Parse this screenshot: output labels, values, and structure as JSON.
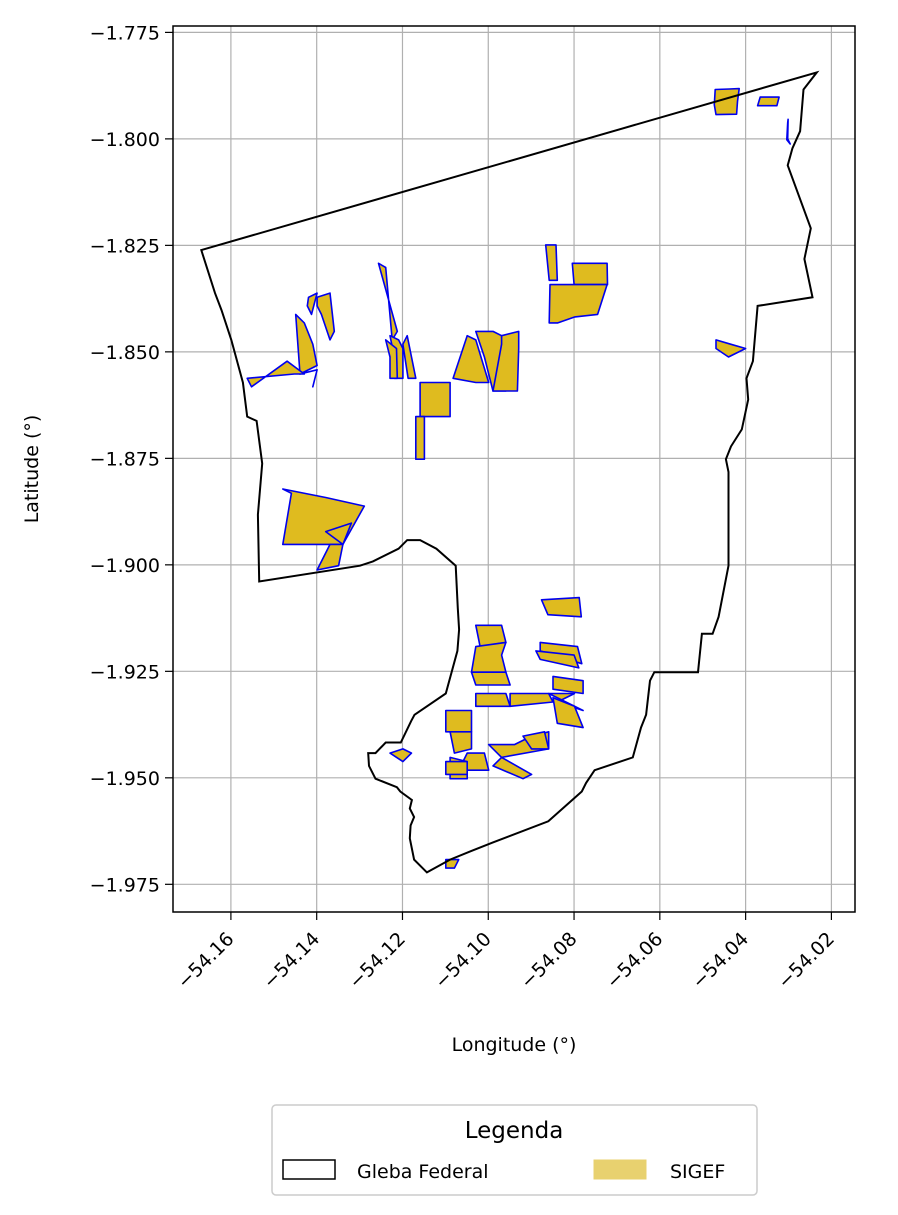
{
  "chart_data": {
    "type": "map",
    "xlabel": "Longitude (°)",
    "ylabel": "Latitude (°)",
    "xlim": [
      -54.1735,
      -54.0145
    ],
    "ylim": [
      -1.9815,
      -1.7735
    ],
    "x_ticks": [
      -54.16,
      -54.14,
      -54.12,
      -54.1,
      -54.08,
      -54.06,
      -54.04,
      -54.02
    ],
    "x_tick_labels": [
      "−54.16",
      "−54.14",
      "−54.12",
      "−54.10",
      "−54.08",
      "−54.06",
      "−54.04",
      "−54.02"
    ],
    "y_ticks": [
      -1.775,
      -1.8,
      -1.825,
      -1.85,
      -1.875,
      -1.9,
      -1.925,
      -1.95,
      -1.975
    ],
    "y_tick_labels": [
      "−1.775",
      "−1.800",
      "−1.825",
      "−1.850",
      "−1.875",
      "−1.900",
      "−1.925",
      "−1.950",
      "−1.975"
    ],
    "grid": true,
    "legend": {
      "title": "Legenda",
      "placement": "bottom-center",
      "entries": [
        {
          "name": "Gleba Federal",
          "facecolor": "#ffffff",
          "edgecolor": "#000000"
        },
        {
          "name": "SIGEF",
          "facecolor": "#e8d16f",
          "edgecolor": "#e8d16f"
        }
      ]
    },
    "colors": {
      "gleba_edge": "#000000",
      "sigef_fill": "#dfbb1f",
      "sigef_edge": "#0000ee",
      "grid": "#b0b0b0"
    },
    "gleba_federal": [
      [
        -54.1669,
        -1.8261
      ],
      [
        -54.0234,
        -1.7844
      ],
      [
        -54.0265,
        -1.7884
      ],
      [
        -54.0273,
        -1.7982
      ],
      [
        -54.0291,
        -1.8022
      ],
      [
        -54.0302,
        -1.8062
      ],
      [
        -54.0248,
        -1.821
      ],
      [
        -54.0263,
        -1.8282
      ],
      [
        -54.0244,
        -1.8372
      ],
      [
        -54.0372,
        -1.8392
      ],
      [
        -54.0383,
        -1.8522
      ],
      [
        -54.0398,
        -1.8562
      ],
      [
        -54.0394,
        -1.8612
      ],
      [
        -54.0409,
        -1.8682
      ],
      [
        -54.0434,
        -1.8722
      ],
      [
        -54.0446,
        -1.8752
      ],
      [
        -54.044,
        -1.8782
      ],
      [
        -54.044,
        -1.8892
      ],
      [
        -54.044,
        -1.9002
      ],
      [
        -54.0463,
        -1.9122
      ],
      [
        -54.0477,
        -1.9162
      ],
      [
        -54.0502,
        -1.9162
      ],
      [
        -54.0511,
        -1.9252
      ],
      [
        -54.0557,
        -1.9252
      ],
      [
        -54.0573,
        -1.9252
      ],
      [
        -54.0613,
        -1.9252
      ],
      [
        -54.0623,
        -1.9272
      ],
      [
        -54.0632,
        -1.9352
      ],
      [
        -54.0644,
        -1.9382
      ],
      [
        -54.0663,
        -1.9452
      ],
      [
        -54.0752,
        -1.9482
      ],
      [
        -54.0772,
        -1.9512
      ],
      [
        -54.0782,
        -1.9532
      ],
      [
        -54.086,
        -1.9602
      ],
      [
        -54.099,
        -1.9652
      ],
      [
        -54.104,
        -1.9672
      ],
      [
        -54.1089,
        -1.9692
      ],
      [
        -54.1143,
        -1.9722
      ],
      [
        -54.1173,
        -1.9692
      ],
      [
        -54.1183,
        -1.9642
      ],
      [
        -54.1181,
        -1.9612
      ],
      [
        -54.1173,
        -1.9592
      ],
      [
        -54.1183,
        -1.9572
      ],
      [
        -54.1178,
        -1.9552
      ],
      [
        -54.1205,
        -1.9532
      ],
      [
        -54.1213,
        -1.9522
      ],
      [
        -54.1263,
        -1.9502
      ],
      [
        -54.1278,
        -1.9472
      ],
      [
        -54.128,
        -1.9442
      ],
      [
        -54.1263,
        -1.9442
      ],
      [
        -54.1239,
        -1.9417
      ],
      [
        -54.1204,
        -1.9417
      ],
      [
        -54.118,
        -1.9367
      ],
      [
        -54.1172,
        -1.9352
      ],
      [
        -54.1099,
        -1.9302
      ],
      [
        -54.1072,
        -1.9202
      ],
      [
        -54.1068,
        -1.9152
      ],
      [
        -54.1071,
        -1.9102
      ],
      [
        -54.1076,
        -1.9002
      ],
      [
        -54.1121,
        -1.8962
      ],
      [
        -54.1159,
        -1.8942
      ],
      [
        -54.1189,
        -1.8942
      ],
      [
        -54.1209,
        -1.8962
      ],
      [
        -54.1269,
        -1.8992
      ],
      [
        -54.1299,
        -1.9002
      ],
      [
        -54.1534,
        -1.9039
      ],
      [
        -54.1537,
        -1.8882
      ],
      [
        -54.1527,
        -1.8762
      ],
      [
        -54.154,
        -1.8662
      ],
      [
        -54.1562,
        -1.8652
      ],
      [
        -54.1572,
        -1.8572
      ],
      [
        -54.1599,
        -1.8472
      ],
      [
        -54.1622,
        -1.8402
      ],
      [
        -54.1637,
        -1.8362
      ],
      [
        -54.1669,
        -1.8261
      ]
    ],
    "sigef_parcels": [
      [
        [
          -54.0471,
          -1.7884
        ],
        [
          -54.0438,
          -1.7883
        ],
        [
          -54.0415,
          -1.7882
        ],
        [
          -54.0419,
          -1.7912
        ],
        [
          -54.0421,
          -1.7942
        ],
        [
          -54.0469,
          -1.7943
        ],
        [
          -54.0473,
          -1.792
        ]
      ],
      [
        [
          -54.0366,
          -1.7902
        ],
        [
          -54.0322,
          -1.7902
        ],
        [
          -54.0327,
          -1.7922
        ],
        [
          -54.0372,
          -1.7922
        ]
      ],
      [
        [
          -54.0301,
          -1.7954
        ],
        [
          -54.0302,
          -1.7962
        ],
        [
          -54.0304,
          -1.8002
        ],
        [
          -54.0296,
          -1.8012
        ],
        [
          -54.0302,
          -1.8
        ]
      ],
      [
        [
          -54.0866,
          -1.8249
        ],
        [
          -54.0842,
          -1.8249
        ],
        [
          -54.0839,
          -1.8332
        ],
        [
          -54.0858,
          -1.8332
        ]
      ],
      [
        [
          -54.0804,
          -1.8292
        ],
        [
          -54.0723,
          -1.8292
        ],
        [
          -54.0722,
          -1.8342
        ],
        [
          -54.08,
          -1.8342
        ]
      ],
      [
        [
          -54.0856,
          -1.8342
        ],
        [
          -54.0833,
          -1.8342
        ],
        [
          -54.0812,
          -1.8342
        ],
        [
          -54.0775,
          -1.8342
        ],
        [
          -54.0723,
          -1.8342
        ],
        [
          -54.0745,
          -1.8412
        ],
        [
          -54.0798,
          -1.8418
        ],
        [
          -54.0838,
          -1.8432
        ],
        [
          -54.0858,
          -1.8432
        ]
      ],
      [
        [
          -54.1256,
          -1.8292
        ],
        [
          -54.1239,
          -1.8302
        ],
        [
          -54.1224,
          -1.8472
        ],
        [
          -54.1212,
          -1.8452
        ]
      ],
      [
        [
          -54.1369,
          -1.8362
        ],
        [
          -54.1399,
          -1.8372
        ],
        [
          -54.1399,
          -1.8392
        ],
        [
          -54.1389,
          -1.8412
        ],
        [
          -54.1369,
          -1.8472
        ],
        [
          -54.1359,
          -1.8452
        ]
      ],
      [
        [
          -54.1399,
          -1.8362
        ],
        [
          -54.1419,
          -1.8372
        ],
        [
          -54.1422,
          -1.8392
        ],
        [
          -54.1412,
          -1.8412
        ]
      ],
      [
        [
          -54.1449,
          -1.8412
        ],
        [
          -54.1429,
          -1.8432
        ],
        [
          -54.1409,
          -1.8482
        ],
        [
          -54.1399,
          -1.8532
        ],
        [
          -54.1439,
          -1.8552
        ],
        [
          -54.1399,
          -1.8542
        ],
        [
          -54.1409,
          -1.8582
        ],
        [
          -54.1399,
          -1.8542
        ],
        [
          -54.1439,
          -1.8552
        ]
      ],
      [
        [
          -54.1452,
          -1.8552
        ],
        [
          -54.1429,
          -1.8552
        ],
        [
          -54.1469,
          -1.8522
        ],
        [
          -54.1552,
          -1.8582
        ],
        [
          -54.1562,
          -1.8562
        ]
      ],
      [
        [
          -54.1229,
          -1.8462
        ],
        [
          -54.1219,
          -1.8512
        ],
        [
          -54.1219,
          -1.8562
        ],
        [
          -54.1199,
          -1.8562
        ],
        [
          -54.1199,
          -1.8492
        ],
        [
          -54.1209,
          -1.8472
        ]
      ],
      [
        [
          -54.1189,
          -1.8462
        ],
        [
          -54.1179,
          -1.8512
        ],
        [
          -54.1169,
          -1.8562
        ],
        [
          -54.1187,
          -1.8562
        ],
        [
          -54.1199,
          -1.8482
        ]
      ],
      [
        [
          -54.1239,
          -1.8472
        ],
        [
          -54.1229,
          -1.8512
        ],
        [
          -54.1229,
          -1.8562
        ],
        [
          -54.1212,
          -1.8562
        ],
        [
          -54.1214,
          -1.8492
        ]
      ],
      [
        [
          -54.1159,
          -1.8572
        ],
        [
          -54.1089,
          -1.8572
        ],
        [
          -54.1089,
          -1.8652
        ],
        [
          -54.1149,
          -1.8652
        ],
        [
          -54.1159,
          -1.8652
        ]
      ],
      [
        [
          -54.1149,
          -1.8652
        ],
        [
          -54.1169,
          -1.8652
        ],
        [
          -54.1169,
          -1.8752
        ],
        [
          -54.1149,
          -1.8752
        ]
      ],
      [
        [
          -54.1049,
          -1.8462
        ],
        [
          -54.1029,
          -1.8472
        ],
        [
          -54.0999,
          -1.8572
        ],
        [
          -54.1029,
          -1.8572
        ],
        [
          -54.1082,
          -1.8562
        ]
      ],
      [
        [
          -54.1029,
          -1.8452
        ],
        [
          -54.0989,
          -1.8452
        ],
        [
          -54.0969,
          -1.8462
        ],
        [
          -54.0959,
          -1.8592
        ],
        [
          -54.0989,
          -1.8592
        ],
        [
          -54.1009,
          -1.8512
        ]
      ],
      [
        [
          -54.0969,
          -1.8462
        ],
        [
          -54.0929,
          -1.8452
        ],
        [
          -54.0929,
          -1.8492
        ],
        [
          -54.0932,
          -1.8592
        ],
        [
          -54.0989,
          -1.8592
        ],
        [
          -54.0969,
          -1.8482
        ]
      ],
      [
        [
          -54.1479,
          -1.8822
        ],
        [
          -54.1459,
          -1.8832
        ],
        [
          -54.1479,
          -1.8952
        ],
        [
          -54.1409,
          -1.8952
        ],
        [
          -54.1339,
          -1.8952
        ],
        [
          -54.1289,
          -1.8862
        ],
        [
          -54.1379,
          -1.8842
        ]
      ],
      [
        [
          -54.1339,
          -1.8952
        ],
        [
          -54.1369,
          -1.8952
        ],
        [
          -54.1399,
          -1.9012
        ],
        [
          -54.1349,
          -1.9002
        ],
        [
          -54.1339,
          -1.8952
        ],
        [
          -54.1379,
          -1.8922
        ],
        [
          -54.1319,
          -1.8902
        ]
      ],
      [
        [
          -54.0469,
          -1.8472
        ],
        [
          -54.0435,
          -1.8482
        ],
        [
          -54.04,
          -1.8492
        ],
        [
          -54.044,
          -1.8512
        ],
        [
          -54.0469,
          -1.8492
        ]
      ],
      [
        [
          -54.0876,
          -1.9082
        ],
        [
          -54.0788,
          -1.9077
        ],
        [
          -54.0783,
          -1.9122
        ],
        [
          -54.0861,
          -1.9117
        ]
      ],
      [
        [
          -54.1029,
          -1.9142
        ],
        [
          -54.0969,
          -1.9142
        ],
        [
          -54.0959,
          -1.9182
        ],
        [
          -54.1019,
          -1.9192
        ]
      ],
      [
        [
          -54.1029,
          -1.9192
        ],
        [
          -54.0959,
          -1.9182
        ],
        [
          -54.0969,
          -1.9212
        ],
        [
          -54.0959,
          -1.9252
        ],
        [
          -54.1039,
          -1.9252
        ]
      ],
      [
        [
          -54.1039,
          -1.9252
        ],
        [
          -54.0959,
          -1.9252
        ],
        [
          -54.0949,
          -1.9282
        ],
        [
          -54.1029,
          -1.9282
        ]
      ],
      [
        [
          -54.0879,
          -1.9182
        ],
        [
          -54.0792,
          -1.9192
        ],
        [
          -54.0782,
          -1.9232
        ],
        [
          -54.0879,
          -1.9202
        ]
      ],
      [
        [
          -54.0889,
          -1.9202
        ],
        [
          -54.08,
          -1.9212
        ],
        [
          -54.0789,
          -1.9242
        ],
        [
          -54.0879,
          -1.9222
        ]
      ],
      [
        [
          -54.0849,
          -1.9262
        ],
        [
          -54.0779,
          -1.9272
        ],
        [
          -54.0779,
          -1.9302
        ],
        [
          -54.0849,
          -1.9292
        ]
      ],
      [
        [
          -54.1029,
          -1.9302
        ],
        [
          -54.0959,
          -1.9302
        ],
        [
          -54.0949,
          -1.9332
        ],
        [
          -54.1029,
          -1.9332
        ]
      ],
      [
        [
          -54.0949,
          -1.9302
        ],
        [
          -54.0859,
          -1.9302
        ],
        [
          -54.0849,
          -1.9322
        ],
        [
          -54.0949,
          -1.9332
        ]
      ],
      [
        [
          -54.0859,
          -1.9302
        ],
        [
          -54.0799,
          -1.9302
        ],
        [
          -54.0839,
          -1.9322
        ],
        [
          -54.0779,
          -1.9342
        ]
      ],
      [
        [
          -54.0849,
          -1.9312
        ],
        [
          -54.0799,
          -1.9332
        ],
        [
          -54.0779,
          -1.9382
        ],
        [
          -54.0839,
          -1.9372
        ]
      ],
      [
        [
          -54.1099,
          -1.9342
        ],
        [
          -54.1039,
          -1.9342
        ],
        [
          -54.1039,
          -1.9392
        ],
        [
          -54.1099,
          -1.9392
        ]
      ],
      [
        [
          -54.1089,
          -1.9392
        ],
        [
          -54.1039,
          -1.9392
        ],
        [
          -54.1039,
          -1.9432
        ],
        [
          -54.1079,
          -1.9442
        ]
      ],
      [
        [
          -54.0999,
          -1.9422
        ],
        [
          -54.0939,
          -1.9422
        ],
        [
          -54.0899,
          -1.9402
        ],
        [
          -54.0859,
          -1.9392
        ],
        [
          -54.0859,
          -1.9432
        ],
        [
          -54.0969,
          -1.9452
        ]
      ],
      [
        [
          -54.0919,
          -1.9402
        ],
        [
          -54.0869,
          -1.9392
        ],
        [
          -54.0859,
          -1.9432
        ],
        [
          -54.0899,
          -1.9432
        ]
      ],
      [
        [
          -54.1049,
          -1.9442
        ],
        [
          -54.1009,
          -1.9442
        ],
        [
          -54.0999,
          -1.9482
        ],
        [
          -54.1069,
          -1.9482
        ]
      ],
      [
        [
          -54.1089,
          -1.9452
        ],
        [
          -54.1049,
          -1.9462
        ],
        [
          -54.1049,
          -1.9502
        ],
        [
          -54.1089,
          -1.9502
        ]
      ],
      [
        [
          -54.1099,
          -1.9462
        ],
        [
          -54.1099,
          -1.9492
        ],
        [
          -54.1049,
          -1.9492
        ],
        [
          -54.1049,
          -1.9462
        ]
      ],
      [
        [
          -54.0989,
          -1.9472
        ],
        [
          -54.0919,
          -1.9502
        ],
        [
          -54.0899,
          -1.9492
        ],
        [
          -54.0969,
          -1.9452
        ]
      ],
      [
        [
          -54.1199,
          -1.9432
        ],
        [
          -54.1179,
          -1.9442
        ],
        [
          -54.1199,
          -1.9462
        ],
        [
          -54.1229,
          -1.9442
        ]
      ],
      [
        [
          -54.1099,
          -1.9692
        ],
        [
          -54.1069,
          -1.9692
        ],
        [
          -54.1079,
          -1.9712
        ],
        [
          -54.1099,
          -1.9712
        ]
      ]
    ]
  }
}
